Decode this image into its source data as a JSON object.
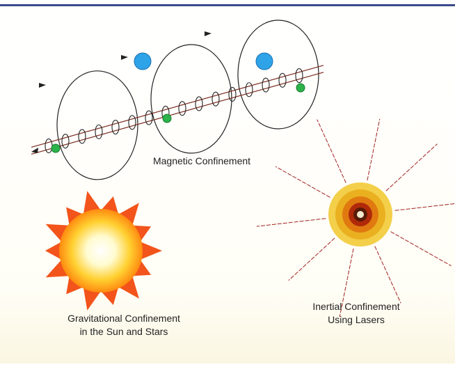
{
  "magnetic_label": [
    "Magnetic Confinement"
  ],
  "gravitational_label": [
    "Gravitational Confinement",
    "in the Sun and Stars"
  ],
  "inertial_label": [
    "Inertial Confinement",
    "Using Lasers"
  ]
}
